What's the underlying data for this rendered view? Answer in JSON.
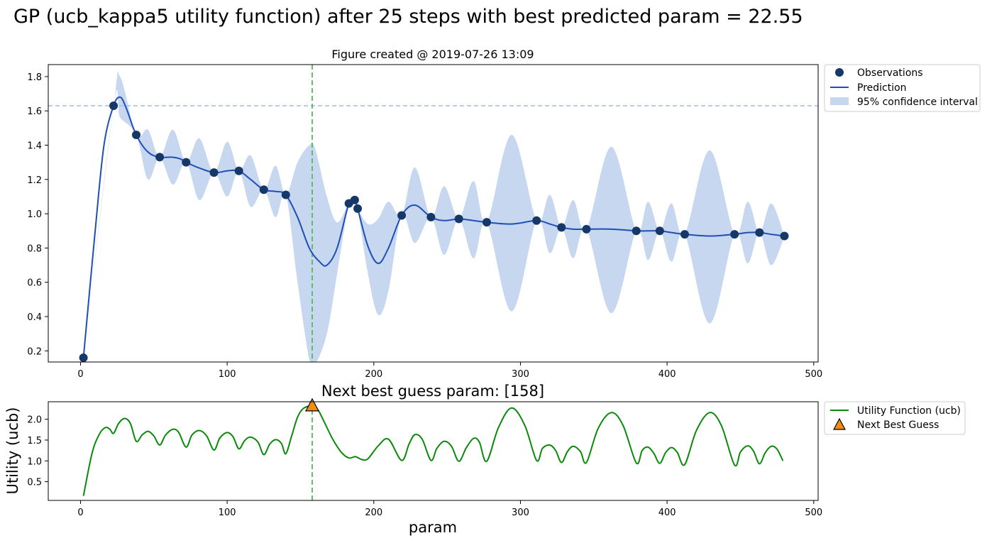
{
  "figure": {
    "suptitle": "GP (ucb_kappa5 utility function) after 25 steps with best predicted param = 22.55",
    "top_title": "Figure created @ 2019-07-26 13:09",
    "bottom_title": "Next best guess param: [158]",
    "colors": {
      "observation": "#163868",
      "prediction": "#1f4fb5",
      "confidence": "#c6d7ef",
      "best_line": "#a9bdf2",
      "next_line": "#55b85a",
      "utility": "#0a8a0a",
      "marker": "#f48c10"
    }
  },
  "chart_data": [
    {
      "type": "line",
      "title": "Figure created @ 2019-07-26 13:09",
      "xlabel": "",
      "ylabel": "",
      "xlim": [
        -22,
        503
      ],
      "ylim": [
        0.135,
        1.87
      ],
      "xticks": [
        0,
        100,
        200,
        300,
        400,
        500
      ],
      "yticks": [
        0.2,
        0.4,
        0.6,
        0.8,
        1.0,
        1.2,
        1.4,
        1.6,
        1.8
      ],
      "ytick_labels": [
        "0.2",
        "0.4",
        "0.6",
        "0.8",
        "1.0",
        "1.2",
        "1.4",
        "1.6",
        "1.8"
      ],
      "legend_position": "outside-right-top",
      "legend": [
        "Observations",
        "Prediction",
        "95% confidence interval"
      ],
      "hline_y": 1.63,
      "vline_x": 158,
      "observations": {
        "name": "Observations",
        "x": [
          2,
          22.55,
          38,
          54,
          72,
          91,
          108,
          125,
          140,
          183,
          187,
          189,
          219,
          239,
          258,
          277,
          311,
          328,
          345,
          379,
          395,
          412,
          446,
          463,
          480
        ],
        "y": [
          0.16,
          1.63,
          1.46,
          1.33,
          1.3,
          1.24,
          1.25,
          1.14,
          1.11,
          1.06,
          1.08,
          1.03,
          0.99,
          0.98,
          0.97,
          0.95,
          0.96,
          0.92,
          0.91,
          0.9,
          0.9,
          0.88,
          0.88,
          0.89,
          0.87
        ]
      },
      "prediction": {
        "name": "Prediction",
        "x": [
          2,
          10,
          16,
          22.55,
          27,
          31,
          38,
          46,
          54,
          62,
          68,
          72,
          80,
          91,
          100,
          108,
          116,
          125,
          133,
          140,
          148,
          156,
          163,
          168,
          175,
          183,
          187,
          189,
          196,
          203,
          210,
          219,
          228,
          239,
          248,
          258,
          268,
          277,
          294,
          311,
          320,
          328,
          336,
          345,
          362,
          379,
          387,
          395,
          403,
          412,
          429,
          446,
          455,
          463,
          471,
          480
        ],
        "y": [
          0.16,
          0.9,
          1.4,
          1.63,
          1.68,
          1.62,
          1.46,
          1.36,
          1.33,
          1.33,
          1.32,
          1.3,
          1.27,
          1.24,
          1.25,
          1.25,
          1.2,
          1.14,
          1.13,
          1.11,
          0.98,
          0.8,
          0.72,
          0.7,
          0.8,
          1.06,
          1.08,
          1.03,
          0.81,
          0.71,
          0.8,
          0.99,
          1.05,
          0.98,
          0.96,
          0.97,
          0.96,
          0.95,
          0.94,
          0.96,
          0.94,
          0.92,
          0.91,
          0.91,
          0.91,
          0.9,
          0.9,
          0.9,
          0.89,
          0.88,
          0.87,
          0.88,
          0.89,
          0.89,
          0.88,
          0.87
        ]
      },
      "confidence_interval": {
        "name": "95% confidence interval",
        "x": [
          2,
          22.55,
          27,
          38,
          46,
          54,
          63,
          72,
          81,
          91,
          100,
          108,
          116,
          125,
          133,
          140,
          148,
          156,
          160,
          168,
          175,
          183,
          187,
          189,
          196,
          203,
          210,
          219,
          228,
          239,
          248,
          258,
          268,
          277,
          294,
          311,
          320,
          328,
          336,
          345,
          362,
          379,
          387,
          395,
          403,
          412,
          429,
          446,
          455,
          463,
          471,
          480
        ],
        "upper": [
          0.16,
          1.63,
          1.8,
          1.46,
          1.49,
          1.33,
          1.49,
          1.3,
          1.44,
          1.24,
          1.42,
          1.25,
          1.34,
          1.14,
          1.28,
          1.11,
          1.3,
          1.4,
          1.38,
          1.1,
          0.95,
          1.06,
          1.08,
          1.03,
          0.94,
          0.97,
          1.07,
          0.99,
          1.27,
          0.98,
          1.16,
          0.97,
          1.19,
          0.95,
          1.46,
          0.96,
          1.11,
          0.92,
          1.08,
          0.91,
          1.39,
          0.9,
          1.07,
          0.9,
          1.06,
          0.88,
          1.37,
          0.88,
          1.07,
          0.89,
          1.06,
          0.87
        ],
        "lower": [
          0.16,
          1.63,
          1.56,
          1.46,
          1.2,
          1.33,
          1.17,
          1.3,
          1.08,
          1.24,
          1.1,
          1.25,
          1.04,
          1.14,
          0.98,
          1.11,
          0.6,
          0.15,
          0.12,
          0.3,
          0.65,
          1.06,
          1.08,
          1.03,
          0.65,
          0.41,
          0.55,
          0.99,
          0.83,
          0.98,
          0.76,
          0.97,
          0.74,
          0.95,
          0.43,
          0.96,
          0.77,
          0.92,
          0.74,
          0.91,
          0.42,
          0.9,
          0.73,
          0.9,
          0.72,
          0.88,
          0.36,
          0.88,
          0.71,
          0.89,
          0.7,
          0.87
        ]
      }
    },
    {
      "type": "line",
      "title": "Next best guess param: [158]",
      "xlabel": "param",
      "ylabel": "Utility (ucb)",
      "xlim": [
        -22,
        503
      ],
      "ylim": [
        0.05,
        2.42
      ],
      "xticks": [
        0,
        100,
        200,
        300,
        400,
        500
      ],
      "yticks": [
        0.5,
        1.0,
        1.5,
        2.0
      ],
      "ytick_labels": [
        "0.5",
        "1.0",
        "1.5",
        "2.0"
      ],
      "legend_position": "outside-right-top",
      "legend": [
        "Utility Function (ucb)",
        "Next Best Guess"
      ],
      "vline_x": 158,
      "utility": {
        "name": "Utility Function (ucb)",
        "x": [
          2,
          8,
          13,
          17,
          20,
          22.55,
          26,
          30,
          34,
          38,
          42,
          46,
          50,
          54,
          58,
          63,
          67,
          72,
          76,
          81,
          86,
          91,
          95,
          100,
          104,
          108,
          112,
          116,
          121,
          125,
          129,
          133,
          137,
          140,
          144,
          148,
          152,
          158,
          162,
          166,
          172,
          178,
          183,
          187,
          189,
          192,
          196,
          203,
          210,
          219,
          224,
          228,
          233,
          239,
          243,
          248,
          253,
          258,
          263,
          268,
          272,
          277,
          285,
          294,
          303,
          311,
          315,
          320,
          324,
          328,
          332,
          336,
          341,
          345,
          353,
          362,
          370,
          379,
          383,
          387,
          391,
          395,
          399,
          403,
          407,
          412,
          420,
          429,
          437,
          446,
          450,
          455,
          459,
          463,
          467,
          471,
          475,
          479
        ],
        "y": [
          0.16,
          1.2,
          1.65,
          1.8,
          1.76,
          1.66,
          1.9,
          2.02,
          1.9,
          1.47,
          1.62,
          1.71,
          1.6,
          1.38,
          1.62,
          1.76,
          1.68,
          1.33,
          1.62,
          1.73,
          1.6,
          1.26,
          1.55,
          1.68,
          1.58,
          1.29,
          1.49,
          1.57,
          1.45,
          1.15,
          1.4,
          1.51,
          1.42,
          1.17,
          1.6,
          2.05,
          2.26,
          2.32,
          2.22,
          1.95,
          1.52,
          1.2,
          1.07,
          1.1,
          1.08,
          1.03,
          1.05,
          1.36,
          1.52,
          1.01,
          1.4,
          1.63,
          1.52,
          1.01,
          1.3,
          1.47,
          1.35,
          0.99,
          1.31,
          1.54,
          1.45,
          0.99,
          1.8,
          2.27,
          1.85,
          1.01,
          1.3,
          1.38,
          1.25,
          0.96,
          1.22,
          1.35,
          1.22,
          0.96,
          1.78,
          2.16,
          1.85,
          0.95,
          1.25,
          1.33,
          1.18,
          0.94,
          1.2,
          1.32,
          1.2,
          0.91,
          1.73,
          2.16,
          1.85,
          0.9,
          1.21,
          1.36,
          1.23,
          0.93,
          1.2,
          1.35,
          1.28,
          1.0
        ]
      },
      "next_best_guess": {
        "name": "Next Best Guess",
        "x": [
          158
        ],
        "y": [
          2.32
        ]
      }
    }
  ]
}
